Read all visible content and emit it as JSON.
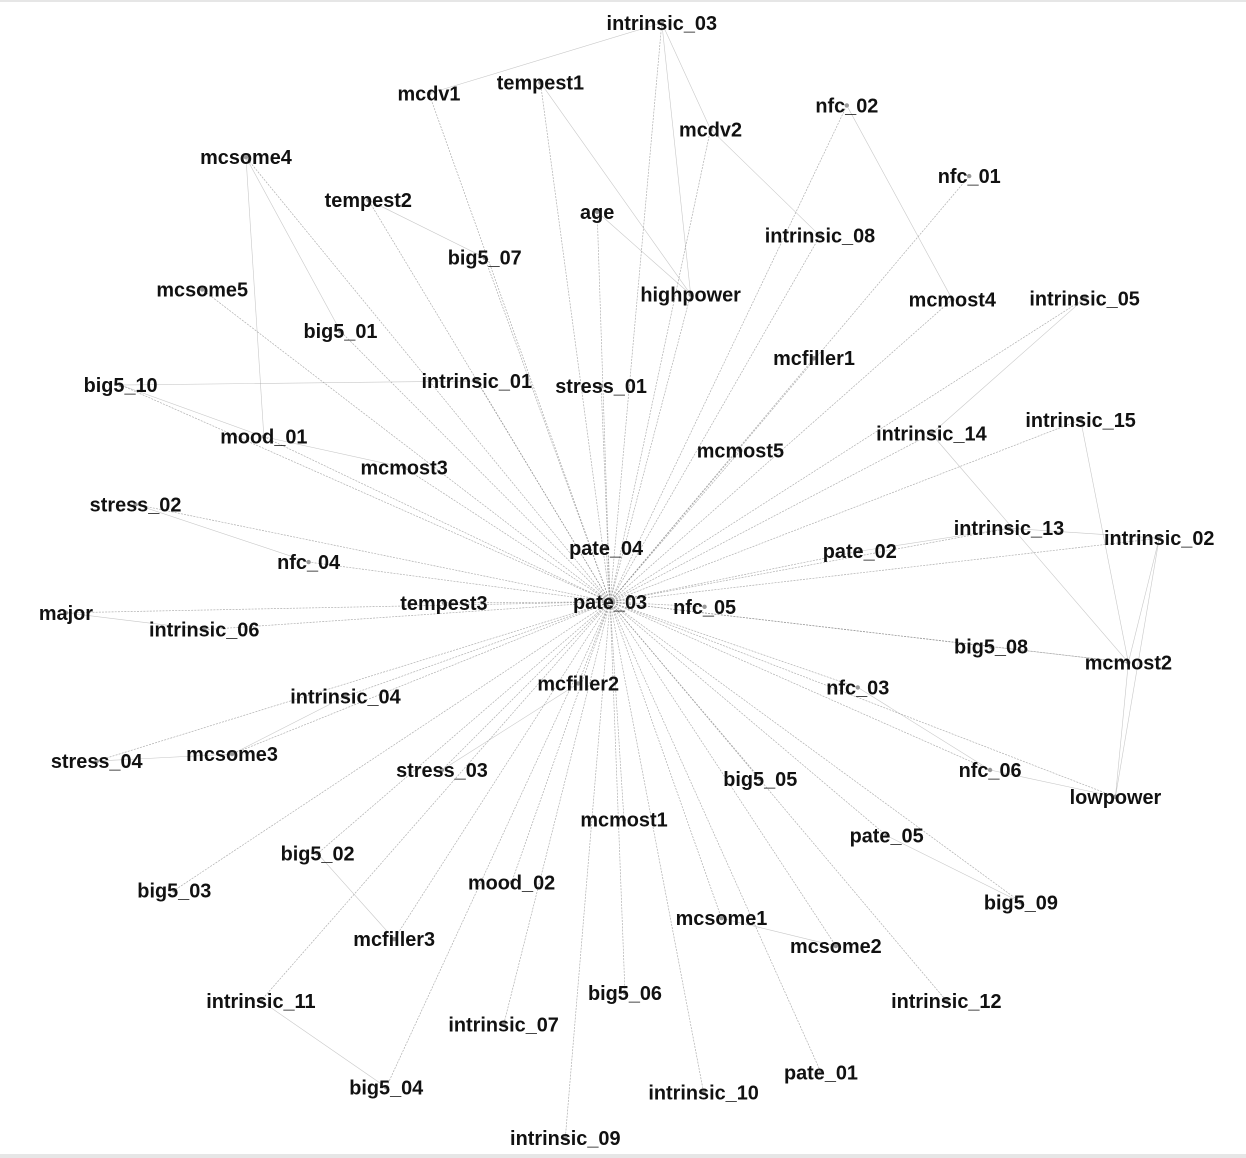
{
  "graph": {
    "nodes": [
      {
        "id": "intrinsic_03",
        "label": "intrinsic_03"
      },
      {
        "id": "tempest1",
        "label": "tempest1"
      },
      {
        "id": "mcdv1",
        "label": "mcdv1"
      },
      {
        "id": "nfc_02",
        "label": "nfc_02"
      },
      {
        "id": "mcdv2",
        "label": "mcdv2"
      },
      {
        "id": "mcsome4",
        "label": "mcsome4"
      },
      {
        "id": "nfc_01",
        "label": "nfc_01"
      },
      {
        "id": "tempest2",
        "label": "tempest2"
      },
      {
        "id": "age",
        "label": "age"
      },
      {
        "id": "intrinsic_08",
        "label": "intrinsic_08"
      },
      {
        "id": "big5_07",
        "label": "big5_07"
      },
      {
        "id": "highpower",
        "label": "highpower"
      },
      {
        "id": "mcsome5",
        "label": "mcsome5"
      },
      {
        "id": "mcmost4",
        "label": "mcmost4"
      },
      {
        "id": "intrinsic_05",
        "label": "intrinsic_05"
      },
      {
        "id": "big5_01",
        "label": "big5_01"
      },
      {
        "id": "mcfiller1",
        "label": "mcfiller1"
      },
      {
        "id": "big5_10",
        "label": "big5_10"
      },
      {
        "id": "intrinsic_01",
        "label": "intrinsic_01"
      },
      {
        "id": "stress_01",
        "label": "stress_01"
      },
      {
        "id": "intrinsic_15",
        "label": "intrinsic_15"
      },
      {
        "id": "intrinsic_14",
        "label": "intrinsic_14"
      },
      {
        "id": "mood_01",
        "label": "mood_01"
      },
      {
        "id": "mcmost5",
        "label": "mcmost5"
      },
      {
        "id": "mcmost3",
        "label": "mcmost3"
      },
      {
        "id": "stress_02",
        "label": "stress_02"
      },
      {
        "id": "intrinsic_13",
        "label": "intrinsic_13"
      },
      {
        "id": "intrinsic_02",
        "label": "intrinsic_02"
      },
      {
        "id": "pate_04",
        "label": "pate_04"
      },
      {
        "id": "pate_02",
        "label": "pate_02"
      },
      {
        "id": "nfc_04",
        "label": "nfc_04"
      },
      {
        "id": "major",
        "label": "major"
      },
      {
        "id": "tempest3",
        "label": "tempest3"
      },
      {
        "id": "pate_03",
        "label": "pate_03"
      },
      {
        "id": "nfc_05",
        "label": "nfc_05"
      },
      {
        "id": "intrinsic_06",
        "label": "intrinsic_06"
      },
      {
        "id": "big5_08",
        "label": "big5_08"
      },
      {
        "id": "mcmost2",
        "label": "mcmost2"
      },
      {
        "id": "mcfiller2",
        "label": "mcfiller2"
      },
      {
        "id": "nfc_03",
        "label": "nfc_03"
      },
      {
        "id": "intrinsic_04",
        "label": "intrinsic_04"
      },
      {
        "id": "stress_04",
        "label": "stress_04"
      },
      {
        "id": "mcsome3",
        "label": "mcsome3"
      },
      {
        "id": "stress_03",
        "label": "stress_03"
      },
      {
        "id": "big5_05",
        "label": "big5_05"
      },
      {
        "id": "nfc_06",
        "label": "nfc_06"
      },
      {
        "id": "lowpower",
        "label": "lowpower"
      },
      {
        "id": "mcmost1",
        "label": "mcmost1"
      },
      {
        "id": "pate_05",
        "label": "pate_05"
      },
      {
        "id": "big5_02",
        "label": "big5_02"
      },
      {
        "id": "big5_03",
        "label": "big5_03"
      },
      {
        "id": "mood_02",
        "label": "mood_02"
      },
      {
        "id": "big5_09",
        "label": "big5_09"
      },
      {
        "id": "mcsome1",
        "label": "mcsome1"
      },
      {
        "id": "mcfiller3",
        "label": "mcfiller3"
      },
      {
        "id": "mcsome2",
        "label": "mcsome2"
      },
      {
        "id": "intrinsic_11",
        "label": "intrinsic_11"
      },
      {
        "id": "big5_06",
        "label": "big5_06"
      },
      {
        "id": "intrinsic_12",
        "label": "intrinsic_12"
      },
      {
        "id": "intrinsic_07",
        "label": "intrinsic_07"
      },
      {
        "id": "pate_01",
        "label": "pate_01"
      },
      {
        "id": "big5_04",
        "label": "big5_04"
      },
      {
        "id": "intrinsic_10",
        "label": "intrinsic_10"
      },
      {
        "id": "intrinsic_09",
        "label": "intrinsic_09"
      }
    ],
    "hub": "pate_03",
    "extra_edges": [
      [
        "intrinsic_03",
        "highpower"
      ],
      [
        "intrinsic_03",
        "mcdv2"
      ],
      [
        "mcdv1",
        "intrinsic_03"
      ],
      [
        "tempest1",
        "highpower"
      ],
      [
        "mcsome4",
        "mood_01"
      ],
      [
        "mcsome4",
        "big5_01"
      ],
      [
        "tempest2",
        "big5_07"
      ],
      [
        "age",
        "highpower"
      ],
      [
        "big5_10",
        "mood_01"
      ],
      [
        "big5_10",
        "intrinsic_01"
      ],
      [
        "mood_01",
        "mcmost3"
      ],
      [
        "stress_02",
        "nfc_04"
      ],
      [
        "intrinsic_13",
        "intrinsic_02"
      ],
      [
        "intrinsic_02",
        "mcmost2"
      ],
      [
        "intrinsic_02",
        "lowpower"
      ],
      [
        "mcmost2",
        "lowpower"
      ],
      [
        "intrinsic_15",
        "mcmost2"
      ],
      [
        "intrinsic_14",
        "mcmost2"
      ],
      [
        "big5_08",
        "mcmost2"
      ],
      [
        "nfc_03",
        "nfc_06"
      ],
      [
        "nfc_06",
        "lowpower"
      ],
      [
        "pate_05",
        "big5_09"
      ],
      [
        "major",
        "intrinsic_06"
      ],
      [
        "stress_04",
        "mcsome3"
      ],
      [
        "intrinsic_04",
        "mcsome3"
      ],
      [
        "big5_02",
        "mcfiller3"
      ],
      [
        "mcsome1",
        "mcsome2"
      ],
      [
        "intrinsic_11",
        "big5_04"
      ],
      [
        "mcdv2",
        "intrinsic_08"
      ],
      [
        "nfc_02",
        "mcmost4"
      ],
      [
        "intrinsic_05",
        "intrinsic_14"
      ],
      [
        "pate_02",
        "intrinsic_13"
      ],
      [
        "stress_03",
        "mcfiller2"
      ]
    ]
  }
}
